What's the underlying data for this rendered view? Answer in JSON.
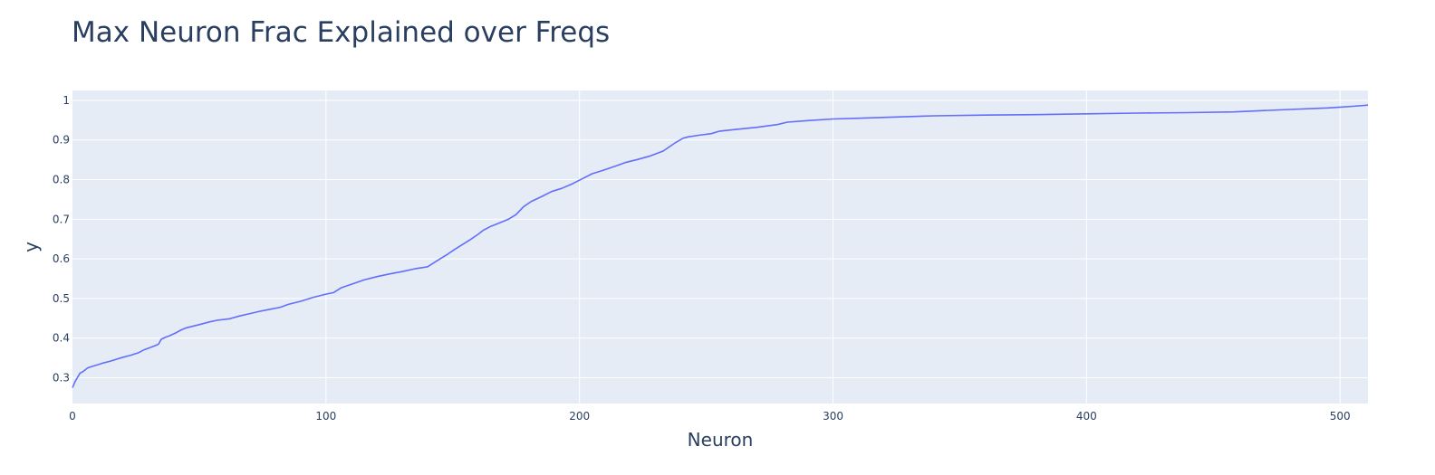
{
  "chart_data": {
    "type": "line",
    "title": "Max Neuron Frac Explained over Freqs",
    "xlabel": "Neuron",
    "ylabel": "y",
    "xlim": [
      0,
      511
    ],
    "ylim": [
      0.235,
      1.025
    ],
    "x_ticks": [
      0,
      100,
      200,
      300,
      400,
      500
    ],
    "y_ticks": [
      0.3,
      0.4,
      0.5,
      0.6,
      0.7,
      0.8,
      0.9,
      1
    ],
    "y_tick_labels": [
      "0.3",
      "0.4",
      "0.5",
      "0.6",
      "0.7",
      "0.8",
      "0.9",
      "1"
    ],
    "grid": true,
    "legend": "none",
    "colors": {
      "line": "#636efa",
      "plot_bg": "#e5ecf6",
      "grid": "#ffffff",
      "text": "#2a3f5f"
    },
    "series": [
      {
        "x": [
          0,
          1,
          3,
          4,
          6,
          8,
          10,
          12,
          15,
          18,
          20,
          23,
          26,
          28,
          31,
          33,
          34,
          35,
          37,
          38,
          41,
          43,
          45,
          48,
          50,
          54,
          57,
          62,
          66,
          70,
          74,
          78,
          82,
          85,
          90,
          95,
          100,
          103,
          106,
          110,
          115,
          120,
          125,
          130,
          135,
          140,
          142,
          145,
          148,
          151,
          154,
          157,
          160,
          162,
          165,
          169,
          172,
          175,
          178,
          181,
          185,
          189,
          193,
          197,
          201,
          205,
          209,
          214,
          218,
          223,
          228,
          233,
          238,
          241,
          243,
          247,
          252,
          255,
          262,
          270,
          278,
          282,
          290,
          300,
          310,
          325,
          340,
          360,
          380,
          400,
          420,
          440,
          458,
          465,
          480,
          495,
          500,
          505,
          511
        ],
        "y": [
          0.275,
          0.29,
          0.312,
          0.315,
          0.325,
          0.329,
          0.333,
          0.337,
          0.342,
          0.348,
          0.352,
          0.357,
          0.363,
          0.37,
          0.377,
          0.382,
          0.385,
          0.397,
          0.403,
          0.405,
          0.414,
          0.421,
          0.426,
          0.431,
          0.434,
          0.441,
          0.445,
          0.449,
          0.456,
          0.462,
          0.468,
          0.473,
          0.478,
          0.485,
          0.493,
          0.503,
          0.511,
          0.515,
          0.527,
          0.536,
          0.547,
          0.555,
          0.562,
          0.568,
          0.575,
          0.58,
          0.588,
          0.6,
          0.612,
          0.625,
          0.637,
          0.649,
          0.662,
          0.672,
          0.682,
          0.692,
          0.7,
          0.712,
          0.732,
          0.745,
          0.757,
          0.77,
          0.778,
          0.789,
          0.802,
          0.815,
          0.823,
          0.834,
          0.843,
          0.851,
          0.86,
          0.872,
          0.894,
          0.905,
          0.908,
          0.912,
          0.916,
          0.922,
          0.927,
          0.932,
          0.939,
          0.945,
          0.949,
          0.953,
          0.955,
          0.958,
          0.961,
          0.963,
          0.964,
          0.966,
          0.968,
          0.969,
          0.971,
          0.973,
          0.977,
          0.981,
          0.983,
          0.985,
          0.988
        ]
      }
    ]
  }
}
